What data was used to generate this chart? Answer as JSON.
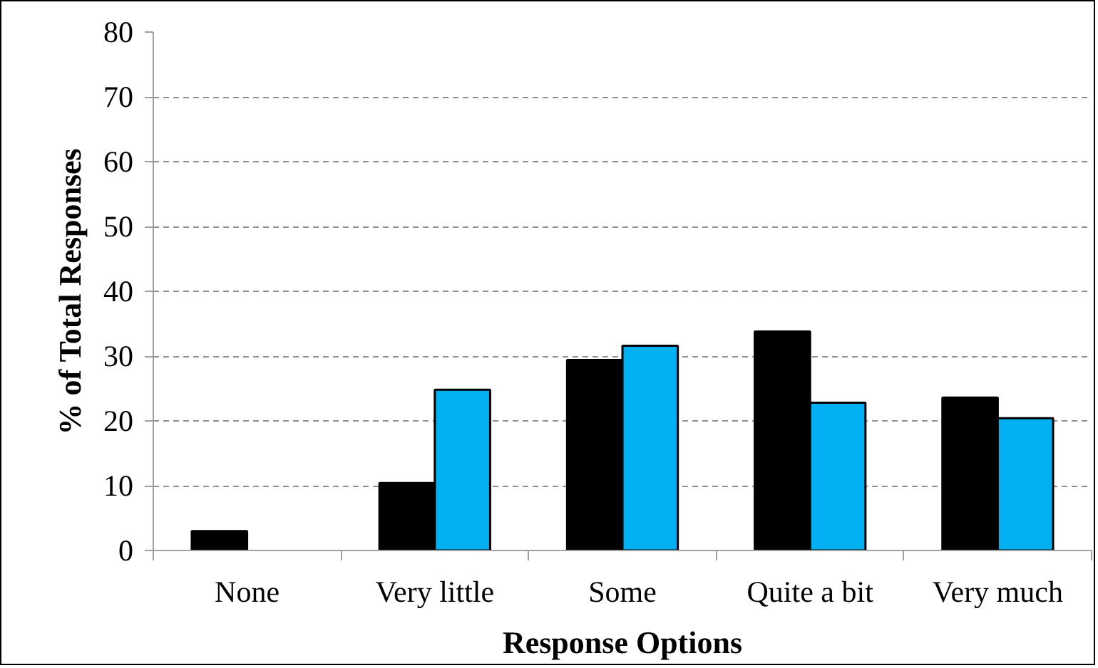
{
  "chart_data": {
    "type": "bar",
    "xlabel": "Response Options",
    "ylabel": "% of Total Responses",
    "categories": [
      "None",
      "Very little",
      "Some",
      "Quite a bit",
      "Very much"
    ],
    "series": [
      {
        "color": "#000000",
        "values": [
          3.0,
          10.4,
          29.4,
          33.8,
          23.6
        ]
      },
      {
        "color": "#00b0f0",
        "values": [
          null,
          24.8,
          31.6,
          22.8,
          20.4
        ]
      }
    ],
    "ylim": [
      0,
      80
    ],
    "yticks": [
      0,
      10,
      20,
      30,
      40,
      50,
      60,
      70,
      80
    ],
    "grid": "y"
  }
}
